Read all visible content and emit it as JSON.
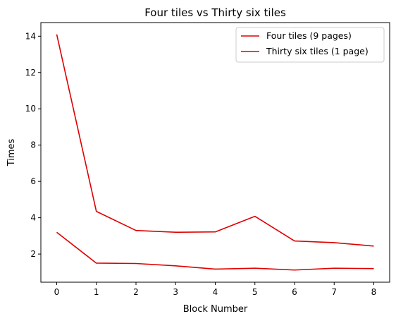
{
  "chart_data": {
    "type": "line",
    "title": "Four tiles vs Thirty six tiles",
    "xlabel": "Block Number",
    "ylabel": "Times",
    "x": [
      0,
      1,
      2,
      3,
      4,
      5,
      6,
      7,
      8
    ],
    "xlim": [
      -0.4,
      8.4
    ],
    "ylim": [
      0.45,
      14.75
    ],
    "xticks": [
      0,
      1,
      2,
      3,
      4,
      5,
      6,
      7,
      8
    ],
    "yticks": [
      2,
      4,
      6,
      8,
      10,
      12,
      14
    ],
    "grid": false,
    "legend_position": "top-right",
    "series": [
      {
        "name": "Four tiles (9 pages)",
        "color": "#e00000",
        "values": [
          14.1,
          4.35,
          3.3,
          3.2,
          3.22,
          4.08,
          2.72,
          2.63,
          2.44
        ]
      },
      {
        "name": "Thirty six tiles (1 page)",
        "color": "#e00000",
        "values": [
          3.2,
          1.5,
          1.48,
          1.35,
          1.17,
          1.22,
          1.12,
          1.22,
          1.2
        ]
      }
    ]
  }
}
